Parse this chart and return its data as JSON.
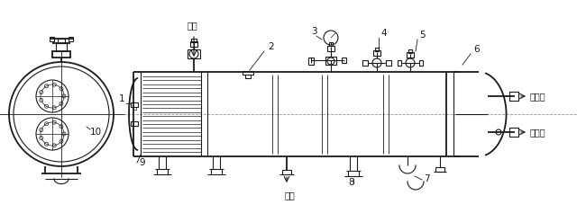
{
  "bg_color": "#ffffff",
  "line_color": "#1a1a1a",
  "labels": {
    "jinqi": "进气",
    "chulye": "出液",
    "lengqushui1": "冷却水",
    "lengqushui2": "冷却水",
    "num1": "1",
    "num2": "2",
    "num3": "3",
    "num4": "4",
    "num5": "5",
    "num6": "6",
    "num7": "7",
    "num8": "8",
    "num9": "9",
    "num10": "10"
  },
  "figsize": [
    6.4,
    2.47
  ],
  "dpi": 100
}
